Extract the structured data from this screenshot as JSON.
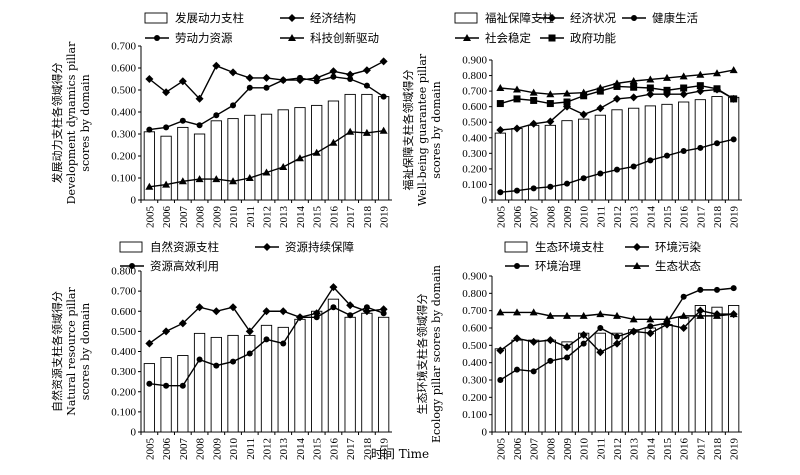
{
  "figure": {
    "x_axis_title": "时间 Time"
  },
  "chart_data": [
    {
      "type": "bar+line",
      "ylabel": [
        "发展动力支柱各领域得分",
        "Development dynamics pillar",
        "scores by domain"
      ],
      "xlabel": "",
      "x": [
        "2005",
        "2006",
        "2007",
        "2008",
        "2009",
        "2010",
        "2011",
        "2012",
        "2013",
        "2014",
        "2015",
        "2016",
        "2017",
        "2018",
        "2019"
      ],
      "ylim": [
        0,
        0.7
      ],
      "yticks": [
        "0",
        "0.100",
        "0.200",
        "0.300",
        "0.400",
        "0.500",
        "0.600",
        "0.700"
      ],
      "legend_position": "top",
      "bar": {
        "name": "发展动力支柱",
        "values": [
          0.31,
          0.29,
          0.33,
          0.3,
          0.36,
          0.37,
          0.385,
          0.39,
          0.41,
          0.42,
          0.43,
          0.45,
          0.48,
          0.48,
          0.47
        ]
      },
      "series": [
        {
          "name": "经济结构",
          "marker": "diamond",
          "values": [
            0.55,
            0.49,
            0.54,
            0.46,
            0.61,
            0.58,
            0.555,
            0.555,
            0.545,
            0.545,
            0.555,
            0.585,
            0.57,
            0.59,
            0.63
          ]
        },
        {
          "name": "劳动力资源",
          "marker": "circle",
          "values": [
            0.32,
            0.33,
            0.36,
            0.34,
            0.385,
            0.43,
            0.51,
            0.51,
            0.545,
            0.555,
            0.54,
            0.56,
            0.55,
            0.52,
            0.47
          ]
        },
        {
          "name": "科技创新驱动",
          "marker": "triangle",
          "values": [
            0.06,
            0.07,
            0.085,
            0.095,
            0.095,
            0.085,
            0.1,
            0.125,
            0.15,
            0.19,
            0.215,
            0.26,
            0.31,
            0.305,
            0.315
          ]
        }
      ]
    },
    {
      "type": "bar+line",
      "ylabel": [
        "福祉保障支柱各领域得分",
        "Well-being guarantee pillar",
        "scores by domain"
      ],
      "xlabel": "",
      "x": [
        "2005",
        "2006",
        "2007",
        "2008",
        "2009",
        "2010",
        "2011",
        "2012",
        "2013",
        "2014",
        "2015",
        "2016",
        "2017",
        "2018",
        "2019"
      ],
      "ylim": [
        0,
        0.9
      ],
      "yticks": [
        "0",
        "0.100",
        "0.200",
        "0.300",
        "0.400",
        "0.500",
        "0.600",
        "0.700",
        "0.800",
        "0.900"
      ],
      "legend_position": "top",
      "bar": {
        "name": "福祉保障支柱",
        "values": [
          0.43,
          0.46,
          0.48,
          0.48,
          0.51,
          0.52,
          0.545,
          0.58,
          0.59,
          0.605,
          0.615,
          0.63,
          0.645,
          0.665,
          0.66
        ]
      },
      "series": [
        {
          "name": "经济状况",
          "marker": "diamond",
          "values": [
            0.45,
            0.46,
            0.49,
            0.505,
            0.6,
            0.55,
            0.59,
            0.65,
            0.66,
            0.68,
            0.68,
            0.68,
            0.7,
            0.71,
            0.65
          ]
        },
        {
          "name": "健康生活",
          "marker": "circle",
          "values": [
            0.05,
            0.06,
            0.075,
            0.085,
            0.105,
            0.14,
            0.17,
            0.195,
            0.215,
            0.255,
            0.285,
            0.315,
            0.335,
            0.365,
            0.39
          ]
        },
        {
          "name": "社会稳定",
          "marker": "triangle",
          "values": [
            0.72,
            0.71,
            0.69,
            0.68,
            0.685,
            0.69,
            0.72,
            0.75,
            0.765,
            0.775,
            0.785,
            0.795,
            0.805,
            0.815,
            0.835
          ]
        },
        {
          "name": "政府功能",
          "marker": "square",
          "values": [
            0.62,
            0.65,
            0.64,
            0.62,
            0.63,
            0.67,
            0.7,
            0.73,
            0.725,
            0.72,
            0.705,
            0.72,
            0.735,
            0.715,
            0.65
          ]
        }
      ]
    },
    {
      "type": "bar+line",
      "ylabel": [
        "自然资源支柱各领域得分",
        "Natural resource pillar",
        "scores by domain"
      ],
      "xlabel": "",
      "x": [
        "2005",
        "2006",
        "2007",
        "2008",
        "2009",
        "2010",
        "2011",
        "2012",
        "2013",
        "2014",
        "2015",
        "2016",
        "2017",
        "2018",
        "2019"
      ],
      "ylim": [
        0,
        0.8
      ],
      "yticks": [
        "0",
        "0.100",
        "0.200",
        "0.300",
        "0.400",
        "0.500",
        "0.600",
        "0.700",
        "0.800"
      ],
      "legend_position": "top",
      "bar": {
        "name": "自然资源支柱",
        "values": [
          0.34,
          0.37,
          0.38,
          0.49,
          0.47,
          0.48,
          0.48,
          0.53,
          0.52,
          0.56,
          0.6,
          0.66,
          0.57,
          0.59,
          0.57
        ]
      },
      "series": [
        {
          "name": "资源持续保障",
          "marker": "diamond",
          "values": [
            0.44,
            0.5,
            0.54,
            0.62,
            0.6,
            0.62,
            0.5,
            0.6,
            0.6,
            0.57,
            0.59,
            0.72,
            0.63,
            0.6,
            0.61
          ]
        },
        {
          "name": "资源高效利用",
          "marker": "circle",
          "values": [
            0.24,
            0.23,
            0.23,
            0.36,
            0.33,
            0.35,
            0.39,
            0.46,
            0.44,
            0.57,
            0.57,
            0.62,
            0.58,
            0.62,
            0.59
          ]
        }
      ]
    },
    {
      "type": "bar+line",
      "ylabel": [
        "生态环境支柱各领域得分",
        "Ecology pillar scores by domain"
      ],
      "xlabel": "",
      "x": [
        "2005",
        "2006",
        "2007",
        "2008",
        "2009",
        "2010",
        "2011",
        "2012",
        "2013",
        "2014",
        "2015",
        "2016",
        "2017",
        "2018",
        "2019"
      ],
      "ylim": [
        0,
        0.9
      ],
      "yticks": [
        "0",
        "0.100",
        "0.200",
        "0.300",
        "0.400",
        "0.500",
        "0.600",
        "0.700",
        "0.800",
        "0.900"
      ],
      "legend_position": "top",
      "bar": {
        "name": "生态环境支柱",
        "values": [
          0.48,
          0.53,
          0.53,
          0.53,
          0.52,
          0.57,
          0.57,
          0.57,
          0.59,
          0.6,
          0.62,
          0.66,
          0.73,
          0.72,
          0.73
        ]
      },
      "series": [
        {
          "name": "环境污染",
          "marker": "diamond",
          "values": [
            0.47,
            0.54,
            0.52,
            0.53,
            0.49,
            0.56,
            0.46,
            0.51,
            0.58,
            0.57,
            0.62,
            0.6,
            0.7,
            0.68,
            0.68
          ]
        },
        {
          "name": "环境治理",
          "marker": "circle",
          "values": [
            0.3,
            0.36,
            0.35,
            0.41,
            0.43,
            0.51,
            0.6,
            0.55,
            0.58,
            0.61,
            0.63,
            0.78,
            0.82,
            0.82,
            0.83
          ]
        },
        {
          "name": "生态状态",
          "marker": "triangle",
          "values": [
            0.69,
            0.69,
            0.69,
            0.67,
            0.67,
            0.67,
            0.68,
            0.67,
            0.65,
            0.65,
            0.65,
            0.67,
            0.67,
            0.67,
            0.68
          ]
        }
      ]
    }
  ]
}
